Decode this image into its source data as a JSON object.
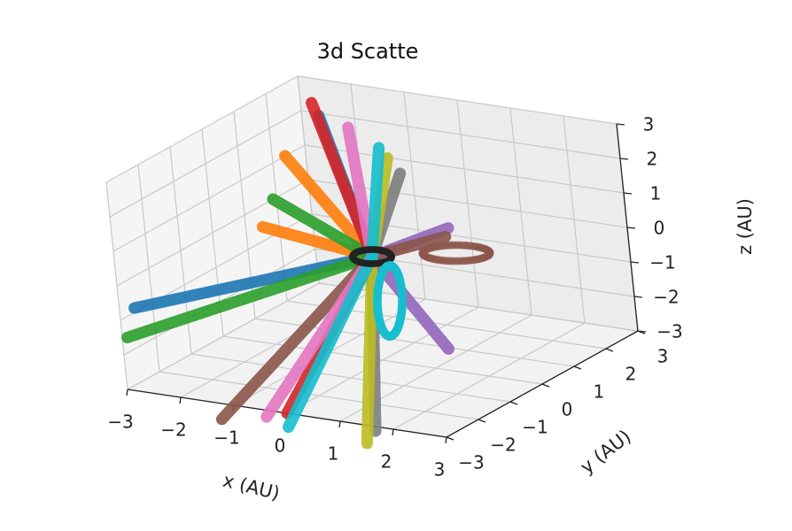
{
  "chart_data": {
    "type": "scatter",
    "projection": "3d",
    "title": "3d Scatte",
    "xlabel": "x (AU)",
    "ylabel": "y (AU)",
    "zlabel": "z (AU)",
    "xlim": [
      -3,
      3
    ],
    "ylim": [
      -3,
      3
    ],
    "zlim": [
      -3,
      3
    ],
    "grid": true,
    "x_ticks": [
      "−3",
      "−2",
      "−1",
      "0",
      "1",
      "2",
      "3"
    ],
    "y_ticks": [
      "−3",
      "−2",
      "−1",
      "0",
      "1",
      "2",
      "3"
    ],
    "z_ticks": [
      "−3",
      "−2",
      "−1",
      "0",
      "1",
      "2",
      "3"
    ],
    "series": [
      {
        "color": "#1f77b4",
        "start": [
          -3.0,
          3.5,
          1.6
        ],
        "end": [
          0.0,
          0.0,
          0.0
        ]
      },
      {
        "color": "#1f77b4",
        "start": [
          0.0,
          0.0,
          0.0
        ],
        "end": [
          -4.0,
          -1.0,
          -1.9
        ]
      },
      {
        "color": "#ff7f0e",
        "start": [
          -3.4,
          3.0,
          0.6
        ],
        "end": [
          0.0,
          0.0,
          0.0
        ]
      },
      {
        "color": "#ff7f0e",
        "start": [
          0.0,
          0.0,
          0.0
        ],
        "end": [
          -3.0,
          1.5,
          -0.6
        ]
      },
      {
        "color": "#2ca02c",
        "start": [
          -3.2,
          2.2,
          -0.2
        ],
        "end": [
          0.0,
          0.0,
          0.0
        ]
      },
      {
        "color": "#2ca02c",
        "start": [
          0.0,
          0.0,
          0.0
        ],
        "end": [
          -4.0,
          -1.3,
          -2.6
        ]
      },
      {
        "color": "#d62728",
        "start": [
          -1.5,
          1.0,
          3.6
        ],
        "end": [
          0.0,
          0.0,
          0.0
        ]
      },
      {
        "color": "#d62728",
        "start": [
          0.0,
          0.0,
          0.0
        ],
        "end": [
          0.0,
          -3.0,
          -3.0
        ]
      },
      {
        "color": "#9467bd",
        "start": [
          2.8,
          -2.0,
          2.5
        ],
        "end": [
          0.0,
          0.0,
          0.0
        ]
      },
      {
        "color": "#9467bd",
        "start": [
          0.0,
          0.0,
          0.0
        ],
        "end": [
          3.6,
          -3.6,
          0.0
        ]
      },
      {
        "color": "#8c564b",
        "start": [
          2.6,
          -1.8,
          2.1
        ],
        "end": [
          0.0,
          0.0,
          0.0
        ]
      },
      {
        "color": "#8c564b",
        "start": [
          0.0,
          0.0,
          0.0
        ],
        "end": [
          -1.0,
          -3.4,
          -3.2
        ]
      },
      {
        "color": "#e377c2",
        "start": [
          -0.4,
          0.3,
          3.5
        ],
        "end": [
          0.0,
          0.0,
          0.0
        ]
      },
      {
        "color": "#e377c2",
        "start": [
          0.0,
          0.0,
          0.0
        ],
        "end": [
          -0.4,
          -3.0,
          -3.2
        ]
      },
      {
        "color": "#7f7f7f",
        "start": [
          1.6,
          -1.4,
          3.5
        ],
        "end": [
          0.0,
          0.0,
          0.0
        ]
      },
      {
        "color": "#7f7f7f",
        "start": [
          0.0,
          0.0,
          0.0
        ],
        "end": [
          1.4,
          -2.6,
          -3.4
        ]
      },
      {
        "color": "#bcbd22",
        "start": [
          1.0,
          -0.8,
          3.5
        ],
        "end": [
          0.0,
          0.0,
          0.0
        ]
      },
      {
        "color": "#bcbd22",
        "start": [
          0.0,
          0.0,
          0.0
        ],
        "end": [
          1.6,
          -3.2,
          -3.4
        ]
      },
      {
        "color": "#17becf",
        "start": [
          0.6,
          -0.4,
          3.5
        ],
        "end": [
          0.0,
          0.0,
          0.0
        ]
      },
      {
        "color": "#17becf",
        "start": [
          0.0,
          0.0,
          0.0
        ],
        "end": [
          0.0,
          -3.0,
          -3.4
        ]
      }
    ]
  }
}
